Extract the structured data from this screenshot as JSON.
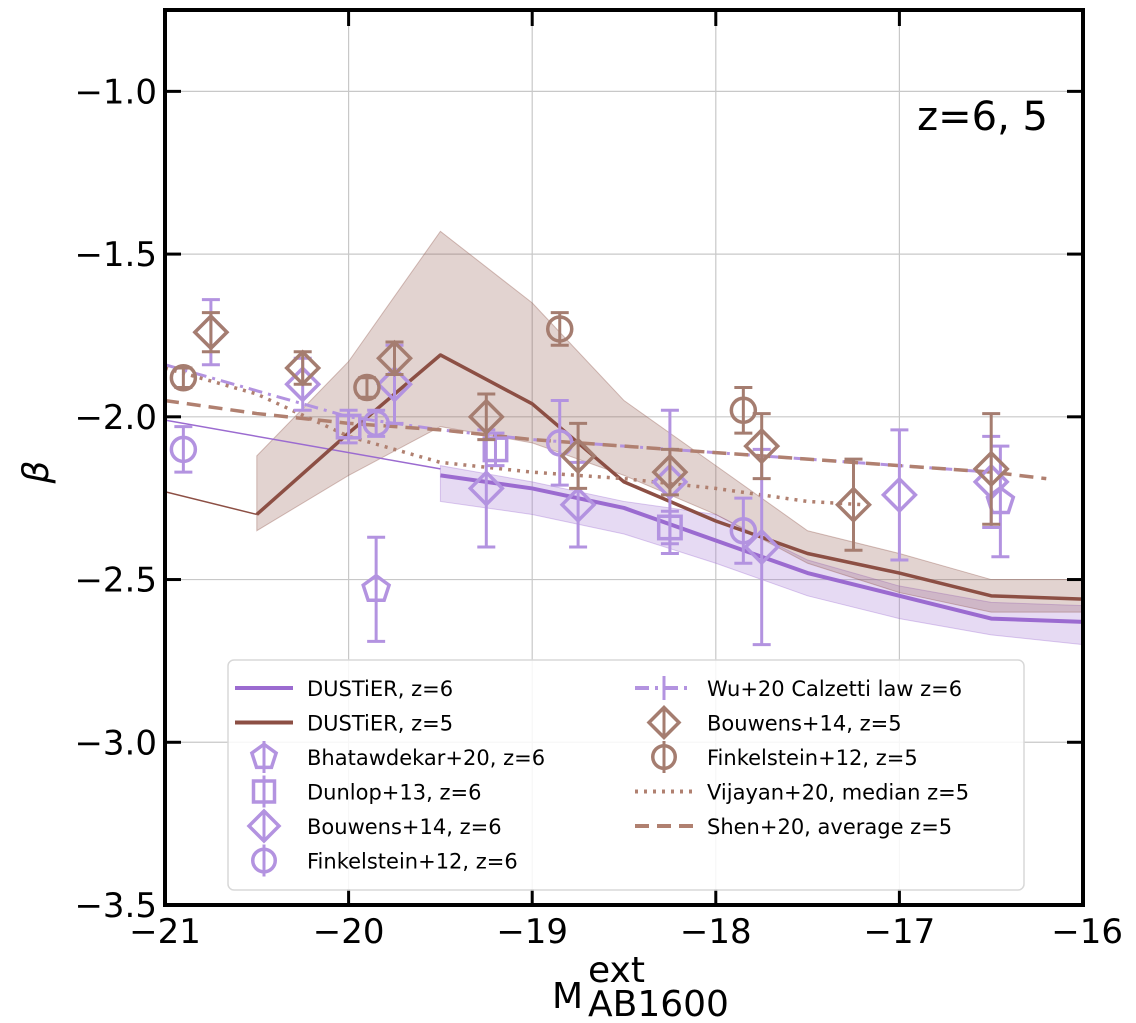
{
  "chart_data": {
    "type": "scatter",
    "title": "",
    "annotation": "z=6, 5",
    "xlabel": {
      "main": "M",
      "sup": "ext",
      "sub": "AB1600"
    },
    "ylabel": "β",
    "xlim": [
      -21,
      -16
    ],
    "ylim": [
      -3.5,
      -0.75
    ],
    "xticks": [
      -21,
      -20,
      -19,
      -18,
      -17,
      -16
    ],
    "xtick_labels": [
      "−21",
      "−20",
      "−19",
      "−18",
      "−17",
      "−16"
    ],
    "yticks": [
      -3.5,
      -3.0,
      -2.5,
      -2.0,
      -1.5,
      -1.0
    ],
    "ytick_labels": [
      "−3.5",
      "−3.0",
      "−2.5",
      "−2.0",
      "−1.5",
      "−1.0"
    ],
    "grid": true,
    "legend_position": "lower-center",
    "colors": {
      "z6": "#9b6bd0",
      "z5": "#8c4f44",
      "z6_light": "#b393e0",
      "z5_light": "#b08070"
    },
    "bands": [
      {
        "name": "DUSTiER z=6 band",
        "color": "#9b6bd0",
        "x": [
          -19.5,
          -19,
          -18.5,
          -18,
          -17.5,
          -17,
          -16.5,
          -16
        ],
        "upper": [
          -2.15,
          -2.2,
          -2.26,
          -2.3,
          -2.44,
          -2.52,
          -2.57,
          -2.58
        ],
        "lower": [
          -2.26,
          -2.3,
          -2.36,
          -2.45,
          -2.55,
          -2.62,
          -2.67,
          -2.7
        ]
      },
      {
        "name": "DUSTiER z=5 band",
        "color": "#8c4f44",
        "x": [
          -20.5,
          -20,
          -19.5,
          -19,
          -18.5,
          -18,
          -17.5,
          -17,
          -16.5,
          -16
        ],
        "upper": [
          -2.12,
          -1.83,
          -1.43,
          -1.65,
          -1.95,
          -2.15,
          -2.35,
          -2.42,
          -2.5,
          -2.5
        ],
        "lower": [
          -2.35,
          -2.18,
          -2.03,
          -2.08,
          -2.18,
          -2.3,
          -2.45,
          -2.54,
          -2.6,
          -2.6
        ]
      }
    ],
    "lines": [
      {
        "name": "DUSTiER, z=6",
        "color": "#9b6bd0",
        "style": "solid",
        "width": 4,
        "x": [
          -19.5,
          -19,
          -18.5,
          -18,
          -17.5,
          -17,
          -16.5,
          -16
        ],
        "y": [
          -2.18,
          -2.22,
          -2.28,
          -2.38,
          -2.48,
          -2.55,
          -2.62,
          -2.63
        ]
      },
      {
        "name": "DUSTiER z=6 faint",
        "color": "#9b6bd0",
        "style": "solid",
        "width": 1.5,
        "x": [
          -21,
          -19.5
        ],
        "y": [
          -2.01,
          -2.16
        ]
      },
      {
        "name": "DUSTiER, z=5",
        "color": "#8c4f44",
        "style": "solid",
        "width": 3.5,
        "x": [
          -20.5,
          -20,
          -19.5,
          -19,
          -18.5,
          -18,
          -17.5,
          -17,
          -16.5,
          -16
        ],
        "y": [
          -2.3,
          -2.05,
          -1.81,
          -1.96,
          -2.2,
          -2.32,
          -2.42,
          -2.48,
          -2.55,
          -2.56
        ]
      },
      {
        "name": "DUSTiER z=5 faint",
        "color": "#8c4f44",
        "style": "solid",
        "width": 1.5,
        "x": [
          -21,
          -20.5
        ],
        "y": [
          -2.23,
          -2.3
        ]
      },
      {
        "name": "Wu+20 Calzetti law z=6",
        "color": "#b393e0",
        "style": "dashdot",
        "width": 3,
        "x": [
          -21,
          -20.5,
          -20,
          -19.5,
          -19,
          -18.5,
          -18,
          -17.5,
          -17,
          -16.5
        ],
        "y": [
          -1.84,
          -1.92,
          -2.0,
          -2.04,
          -2.07,
          -2.09,
          -2.11,
          -2.13,
          -2.15,
          -2.17
        ]
      },
      {
        "name": "Vijayan+20, median z=5",
        "color": "#b08070",
        "style": "dotted",
        "width": 3.5,
        "x": [
          -21,
          -20.5,
          -20,
          -19.5,
          -19,
          -18.5,
          -18,
          -17.5,
          -17.2
        ],
        "y": [
          -1.85,
          -1.93,
          -2.06,
          -2.14,
          -2.17,
          -2.19,
          -2.22,
          -2.26,
          -2.27
        ]
      },
      {
        "name": "Shen+20, average z=5",
        "color": "#b08070",
        "style": "dashed",
        "width": 3.5,
        "x": [
          -21,
          -20.5,
          -20,
          -19.5,
          -19,
          -18.5,
          -18,
          -17.5,
          -17,
          -16.5,
          -16.2
        ],
        "y": [
          -1.95,
          -1.99,
          -2.02,
          -2.04,
          -2.07,
          -2.09,
          -2.11,
          -2.13,
          -2.15,
          -2.17,
          -2.19
        ]
      }
    ],
    "points": [
      {
        "name": "Bhatawdekar+20, z=6",
        "marker": "pentagon",
        "color": "#b393e0",
        "x": [
          -19.85,
          -16.45
        ],
        "y": [
          -2.53,
          -2.26
        ],
        "err": [
          0.16,
          0.17
        ]
      },
      {
        "name": "Dunlop+13, z=6",
        "marker": "square",
        "color": "#b393e0",
        "x": [
          -20.0,
          -19.2,
          -18.25
        ],
        "y": [
          -2.03,
          -2.1,
          -2.34
        ],
        "err": [
          0.05,
          0.05,
          0.05
        ]
      },
      {
        "name": "Bouwens+14, z=6",
        "marker": "diamond",
        "color": "#b393e0",
        "x": [
          -20.75,
          -20.25,
          -19.75,
          -19.25,
          -18.75,
          -18.25,
          -17.75,
          -17.0,
          -16.5
        ],
        "y": [
          -1.74,
          -1.9,
          -1.9,
          -2.22,
          -2.27,
          -2.2,
          -2.4,
          -2.24,
          -2.2
        ],
        "err": [
          0.1,
          0.08,
          0.12,
          0.18,
          0.13,
          0.22,
          0.3,
          0.2,
          0.14
        ]
      },
      {
        "name": "Finkelstein+12, z=6",
        "marker": "circle",
        "color": "#b393e0",
        "x": [
          -20.9,
          -19.85,
          -18.85,
          -17.85
        ],
        "y": [
          -2.1,
          -2.02,
          -2.08,
          -2.35
        ],
        "err": [
          0.07,
          0.04,
          0.13,
          0.1
        ]
      },
      {
        "name": "Bouwens+14, z=5",
        "marker": "diamond",
        "color": "#a57d70",
        "x": [
          -20.75,
          -20.25,
          -19.75,
          -19.25,
          -18.75,
          -18.25,
          -17.75,
          -17.25,
          -16.5
        ],
        "y": [
          -1.74,
          -1.85,
          -1.82,
          -2.0,
          -2.12,
          -2.17,
          -2.09,
          -2.27,
          -2.16
        ],
        "err": [
          0.06,
          0.05,
          0.05,
          0.07,
          0.1,
          0.07,
          0.1,
          0.14,
          0.17
        ]
      },
      {
        "name": "Finkelstein+12, z=5",
        "marker": "circle",
        "color": "#a57d70",
        "x": [
          -20.9,
          -19.9,
          -18.85,
          -17.85
        ],
        "y": [
          -1.88,
          -1.91,
          -1.73,
          -1.98
        ],
        "err": [
          0.03,
          0.03,
          0.05,
          0.07
        ]
      }
    ],
    "legend": [
      {
        "label": "DUSTiER, z=6",
        "kind": "line",
        "color": "#9b6bd0",
        "style": "solid"
      },
      {
        "label": "DUSTiER, z=5",
        "kind": "line",
        "color": "#8c4f44",
        "style": "solid"
      },
      {
        "label": "Bhatawdekar+20, z=6",
        "kind": "marker",
        "marker": "pentagon",
        "color": "#b393e0"
      },
      {
        "label": "Dunlop+13, z=6",
        "kind": "marker",
        "marker": "square",
        "color": "#b393e0"
      },
      {
        "label": "Bouwens+14, z=6",
        "kind": "marker",
        "marker": "diamond",
        "color": "#b393e0"
      },
      {
        "label": "Finkelstein+12, z=6",
        "kind": "marker",
        "marker": "circle",
        "color": "#b393e0"
      },
      {
        "label": "Wu+20 Calzetti law z=6",
        "kind": "line",
        "color": "#b393e0",
        "style": "dashdot"
      },
      {
        "label": "Bouwens+14, z=5",
        "kind": "marker",
        "marker": "diamond",
        "color": "#a57d70"
      },
      {
        "label": "Finkelstein+12, z=5",
        "kind": "marker",
        "marker": "circle",
        "color": "#a57d70"
      },
      {
        "label": "Vijayan+20, median z=5",
        "kind": "line",
        "color": "#b08070",
        "style": "dotted"
      },
      {
        "label": "Shen+20, average z=5",
        "kind": "line",
        "color": "#b08070",
        "style": "dashed"
      }
    ]
  }
}
